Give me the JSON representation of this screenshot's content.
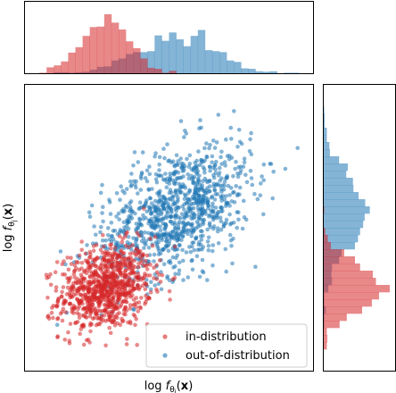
{
  "chart_data": {
    "type": "scatter",
    "xlabel": "log f_{θ_i}(x)",
    "ylabel": "log f_{θ_j}(x)",
    "grid": false,
    "legend_placement": "bottom-right",
    "marginal_histograms": [
      "top",
      "right"
    ],
    "xlim": [
      0,
      10
    ],
    "ylim": [
      0,
      10
    ],
    "series": [
      {
        "name": "in-distribution",
        "color": "#d62728",
        "center": [
          2.8,
          2.9
        ],
        "spread": [
          0.8,
          0.75
        ],
        "n_points": 900
      },
      {
        "name": "out-of-distribution",
        "color": "#1f77b4",
        "center": [
          5.3,
          5.6
        ],
        "spread": [
          1.3,
          1.2
        ],
        "n_points": 1000
      }
    ]
  }
}
